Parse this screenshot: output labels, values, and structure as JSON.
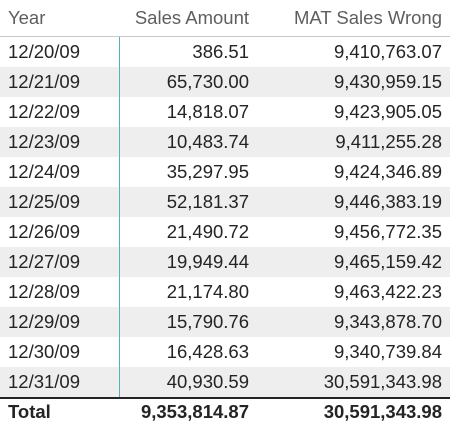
{
  "table": {
    "columns": [
      "Year",
      "Sales Amount",
      "MAT Sales Wrong"
    ],
    "rows": [
      [
        "12/20/09",
        "386.51",
        "9,410,763.07"
      ],
      [
        "12/21/09",
        "65,730.00",
        "9,430,959.15"
      ],
      [
        "12/22/09",
        "14,818.07",
        "9,423,905.05"
      ],
      [
        "12/23/09",
        "10,483.74",
        "9,411,255.28"
      ],
      [
        "12/24/09",
        "35,297.95",
        "9,424,346.89"
      ],
      [
        "12/25/09",
        "52,181.37",
        "9,446,383.19"
      ],
      [
        "12/26/09",
        "21,490.72",
        "9,456,772.35"
      ],
      [
        "12/27/09",
        "19,949.44",
        "9,465,159.42"
      ],
      [
        "12/28/09",
        "21,174.80",
        "9,463,422.23"
      ],
      [
        "12/29/09",
        "15,790.76",
        "9,343,878.70"
      ],
      [
        "12/30/09",
        "16,428.63",
        "9,340,739.84"
      ],
      [
        "12/31/09",
        "40,930.59",
        "30,591,343.98"
      ]
    ],
    "total": [
      "Total",
      "9,353,814.87",
      "30,591,343.98"
    ]
  }
}
